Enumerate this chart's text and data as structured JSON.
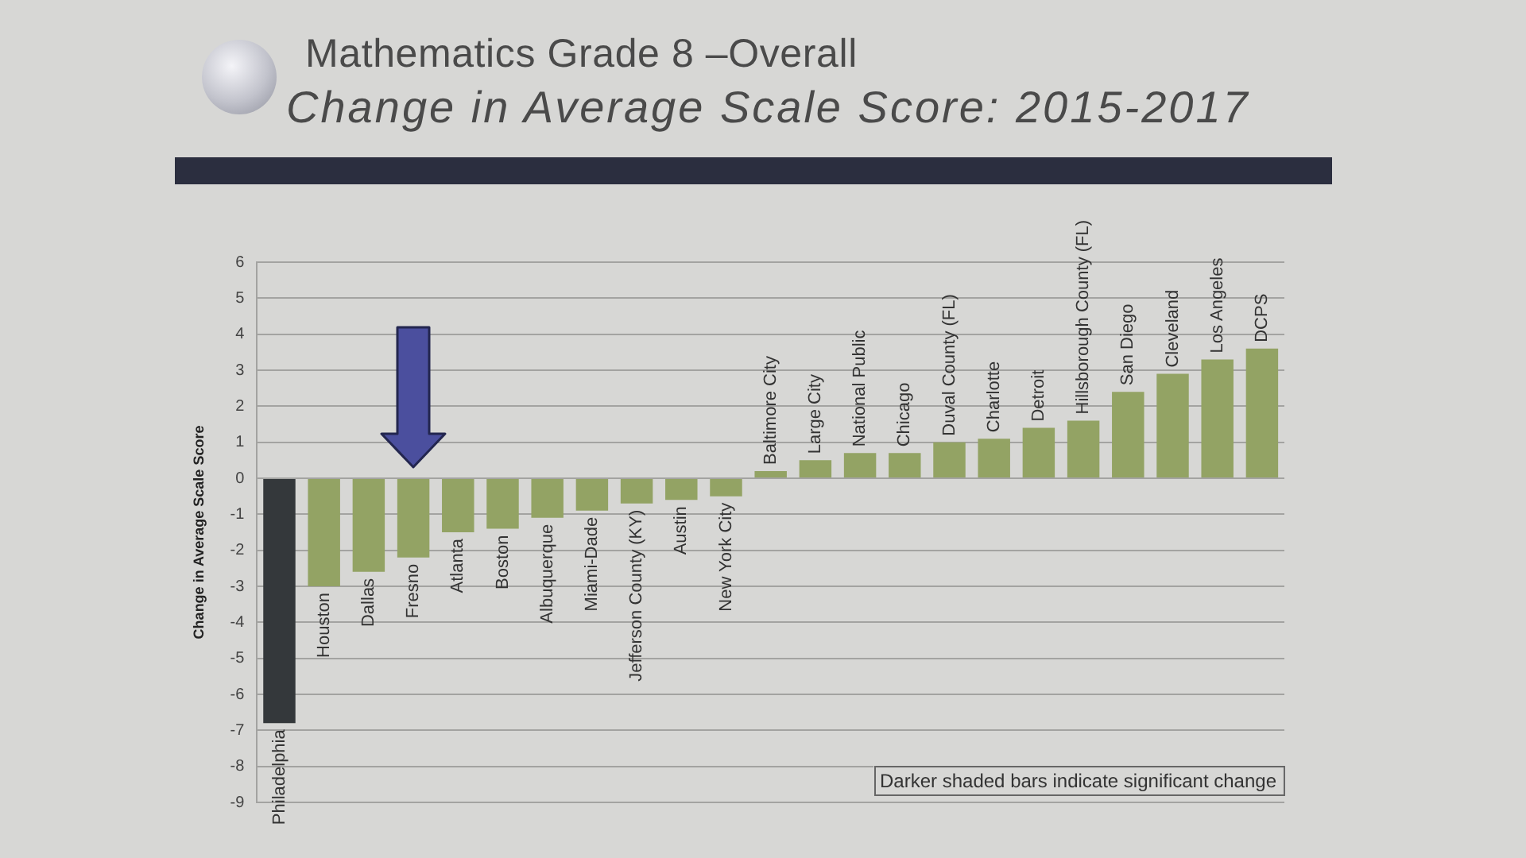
{
  "chart_data": {
    "type": "bar",
    "title": "Mathematics Grade 8 –Overall",
    "subtitle": "Change in Average Scale Score: 2015-2017",
    "ylabel": "Change in Average Scale Score",
    "categories": [
      "Philadelphia",
      "Houston",
      "Dallas",
      "Fresno",
      "Atlanta",
      "Boston",
      "Albuquerque",
      "Miami-Dade",
      "Jefferson County (KY)",
      "Austin",
      "New York City",
      "Baltimore City",
      "Large City",
      "National Public",
      "Chicago",
      "Duval County (FL)",
      "Charlotte",
      "Detroit",
      "Hillsborough County (FL)",
      "San Diego",
      "Cleveland",
      "Los Angeles",
      "DCPS"
    ],
    "values": [
      -6.8,
      -3.0,
      -2.6,
      -2.2,
      -1.5,
      -1.4,
      -1.1,
      -0.9,
      -0.7,
      -0.6,
      -0.5,
      0.2,
      0.5,
      0.7,
      0.7,
      1.0,
      1.1,
      1.4,
      1.6,
      2.4,
      2.9,
      3.3,
      3.6
    ],
    "colors": [
      "#34383b",
      "#93a364",
      "#93a364",
      "#93a364",
      "#93a364",
      "#93a364",
      "#93a364",
      "#93a364",
      "#93a364",
      "#93a364",
      "#93a364",
      "#93a364",
      "#93a364",
      "#93a364",
      "#93a364",
      "#93a364",
      "#93a364",
      "#93a364",
      "#93a364",
      "#93a364",
      "#93a364",
      "#93a364",
      "#93a364"
    ],
    "ylim": [
      -9,
      6
    ],
    "yticks": [
      -9,
      -8,
      -7,
      -6,
      -5,
      -4,
      -3,
      -2,
      -1,
      0,
      1,
      2,
      3,
      4,
      5,
      6
    ],
    "grid": "y",
    "annotations": [
      "Darker shaded bars indicate significant change"
    ]
  }
}
